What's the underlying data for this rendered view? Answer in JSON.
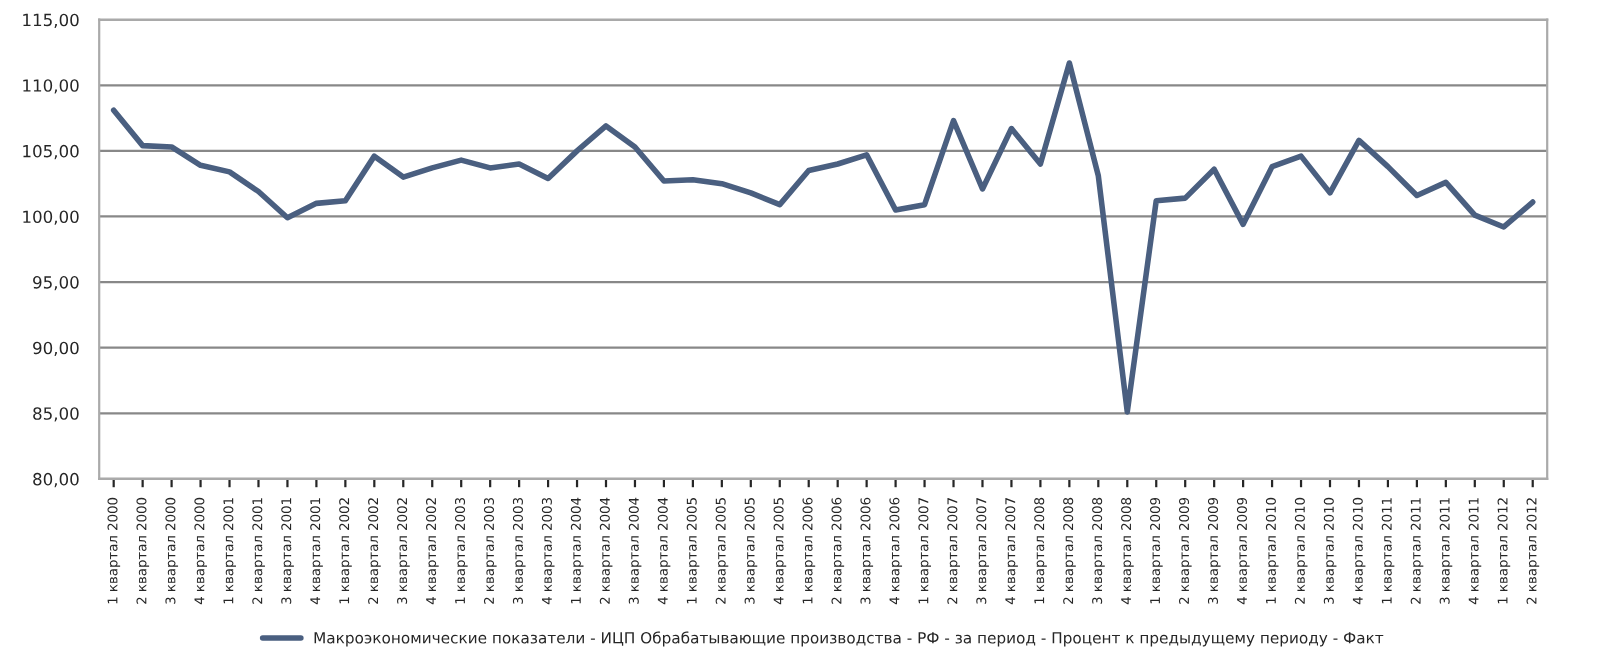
{
  "chart_data": {
    "type": "line",
    "categories": [
      "1 квартал 2000",
      "2 квартал 2000",
      "3 квартал 2000",
      "4 квартал 2000",
      "1 квартал 2001",
      "2 квартал 2001",
      "3 квартал 2001",
      "4 квартал 2001",
      "1 квартал 2002",
      "2 квартал 2002",
      "3 квартал 2002",
      "4 квартал 2002",
      "1 квартал 2003",
      "2 квартал 2003",
      "3 квартал 2003",
      "4 квартал 2003",
      "1 квартал 2004",
      "2 квартал 2004",
      "3 квартал 2004",
      "4 квартал 2004",
      "1 квартал 2005",
      "2 квартал 2005",
      "3 квартал 2005",
      "4 квартал 2005",
      "1 квартал 2006",
      "2 квартал 2006",
      "3 квартал 2006",
      "4 квартал 2006",
      "1 квартал 2007",
      "2 квартал 2007",
      "3 квартал 2007",
      "4 квартал 2007",
      "1 квартал 2008",
      "2 квартал 2008",
      "3 квартал 2008",
      "4 квартал 2008",
      "1 квартал 2009",
      "2 квартал 2009",
      "3 квартал 2009",
      "4 квартал 2009",
      "1 квартал 2010",
      "2 квартал 2010",
      "3 квартал 2010",
      "4 квартал 2010",
      "1 квартал 2011",
      "2 квартал 2011",
      "3 квартал 2011",
      "4 квартал 2011",
      "1 квартал 2012",
      "2 квартал 2012"
    ],
    "series": [
      {
        "name": "Макроэкономические показатели - ИЦП Обрабатывающие производства - РФ - за период - Процент к предыдущему периоду - Факт",
        "color": "#4a5f80",
        "values": [
          108.1,
          105.4,
          105.3,
          103.9,
          103.4,
          101.9,
          99.9,
          101.0,
          101.2,
          104.6,
          103.0,
          103.7,
          104.3,
          103.7,
          104.0,
          102.9,
          105.0,
          106.9,
          105.3,
          102.7,
          102.8,
          102.5,
          101.8,
          100.9,
          103.5,
          104.0,
          104.7,
          100.5,
          100.9,
          107.3,
          102.1,
          106.7,
          104.0,
          111.7,
          103.1,
          85.1,
          101.2,
          101.4,
          103.6,
          99.4,
          103.8,
          104.6,
          101.8,
          105.8,
          103.8,
          101.6,
          102.6,
          100.1,
          99.2,
          101.1
        ]
      }
    ],
    "ylim": [
      80,
      115
    ],
    "yticks": [
      {
        "value": 80,
        "label": "80,00"
      },
      {
        "value": 85,
        "label": "85,00"
      },
      {
        "value": 90,
        "label": "90,00"
      },
      {
        "value": 95,
        "label": "95,00"
      },
      {
        "value": 100,
        "label": "100,00"
      },
      {
        "value": 105,
        "label": "105,00"
      },
      {
        "value": 110,
        "label": "110,00"
      },
      {
        "value": 115,
        "label": "115,00"
      }
    ],
    "grid": "y",
    "legend": "bottom",
    "marker": "none",
    "line_style": "solid"
  }
}
